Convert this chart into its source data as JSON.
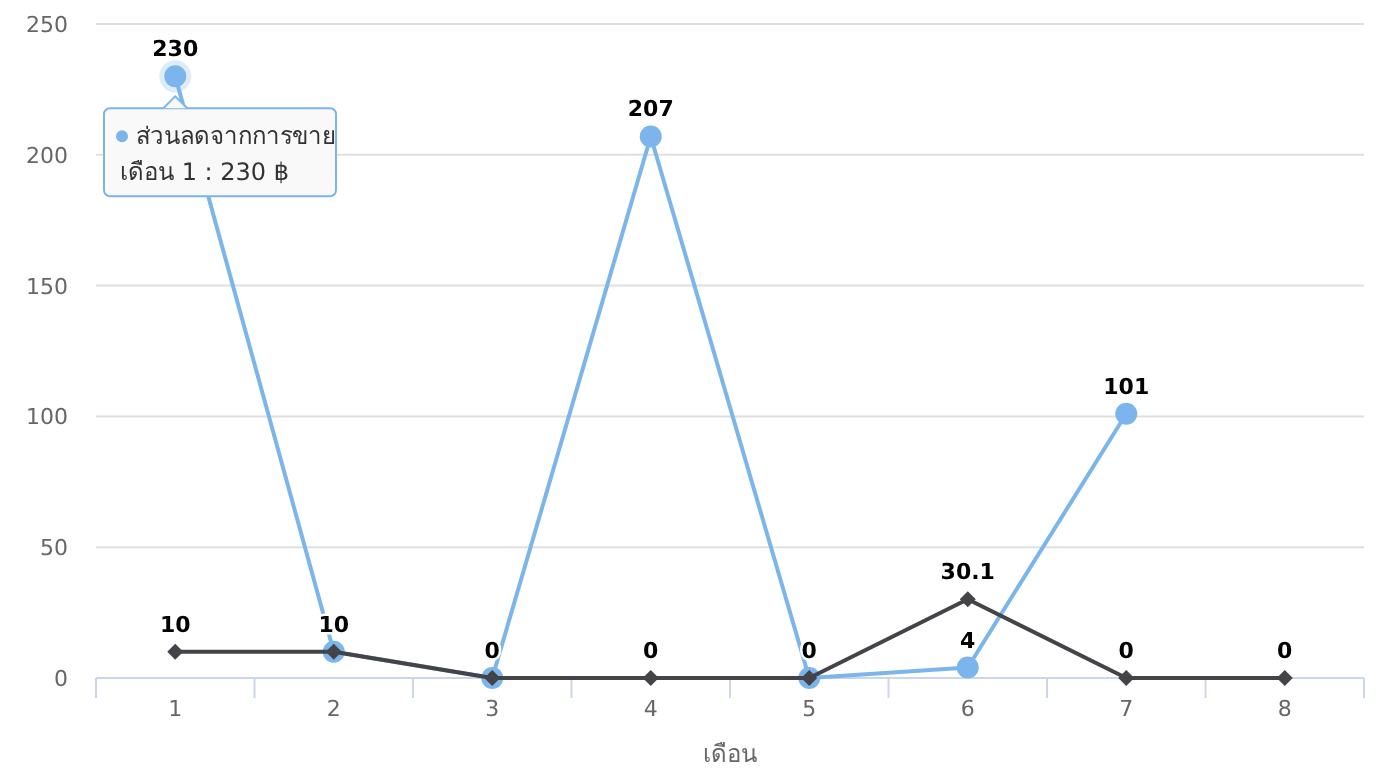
{
  "chart_data": {
    "type": "line",
    "xlabel": "เดือน",
    "categories": [
      "1",
      "2",
      "3",
      "4",
      "5",
      "6",
      "7",
      "8"
    ],
    "series": [
      {
        "name": "ส่วนลดจากการขาย",
        "color": "#7cb5ec",
        "marker": "circle",
        "values": [
          230,
          10,
          0,
          207,
          0,
          4,
          101,
          null
        ],
        "value_labels": [
          "230",
          null,
          null,
          "207",
          null,
          "4",
          "101",
          null
        ]
      },
      {
        "color": "#434348",
        "marker": "diamond",
        "values": [
          10,
          10,
          0,
          0,
          0,
          30.1,
          0,
          0
        ],
        "value_labels": [
          "10",
          "10",
          "0",
          "0",
          "0",
          "30.1",
          "0",
          "0"
        ]
      }
    ],
    "ylim": [
      0,
      250
    ],
    "yticks": [
      0,
      50,
      100,
      150,
      200,
      250
    ],
    "grid": "y",
    "legend": "top left",
    "annotations": [
      "เดือน 1 : 230 ฿"
    ]
  }
}
